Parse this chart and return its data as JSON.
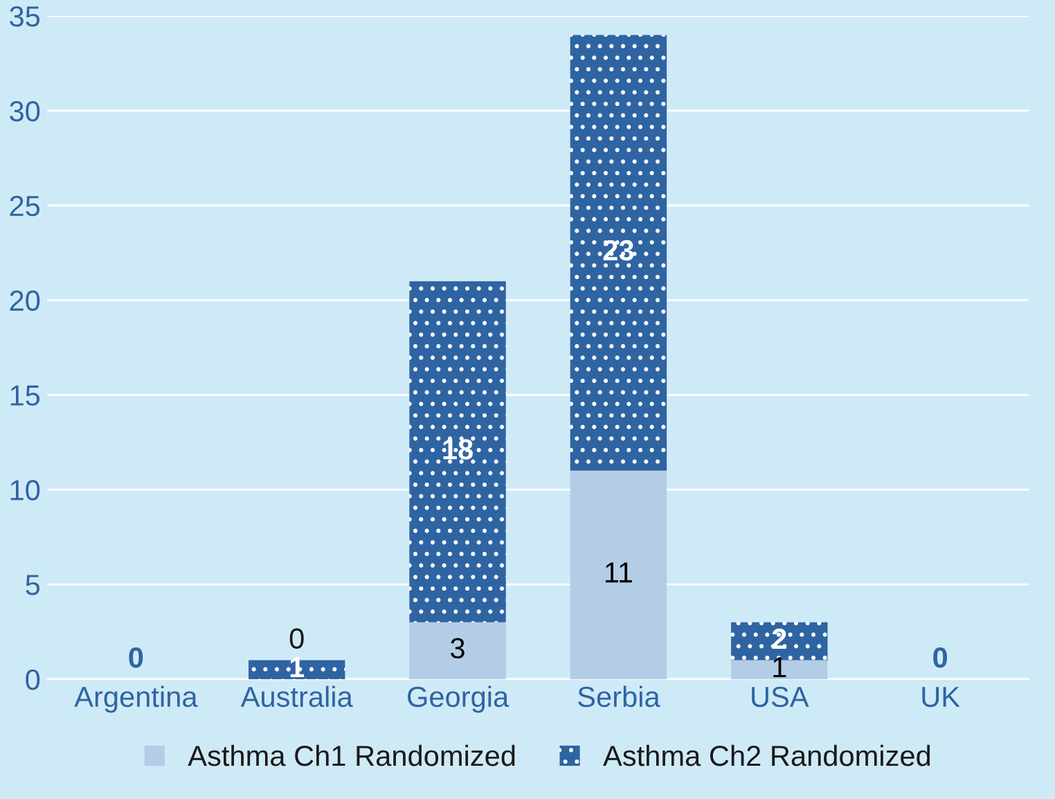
{
  "chart_data": {
    "type": "bar",
    "stacked": true,
    "categories": [
      "Argentina",
      "Australia",
      "Georgia",
      "Serbia",
      "USA",
      "UK"
    ],
    "series": [
      {
        "name": "Asthma Ch1 Randomized",
        "color": "#b4cde6",
        "values": [
          0,
          0,
          3,
          11,
          1,
          0
        ],
        "value_labels": [
          null,
          "0",
          "3",
          "11",
          "1",
          null
        ]
      },
      {
        "name": "Asthma Ch2 Randomized",
        "color": "#2f64a2",
        "values": [
          0,
          1,
          18,
          23,
          2,
          0
        ],
        "value_labels": [
          "0",
          "1",
          "18",
          "23",
          "2",
          "0"
        ]
      }
    ],
    "ylim": [
      0,
      35
    ],
    "yticks": [
      0,
      5,
      10,
      15,
      20,
      25,
      30,
      35
    ],
    "grid": "y",
    "legend": "bottom"
  }
}
